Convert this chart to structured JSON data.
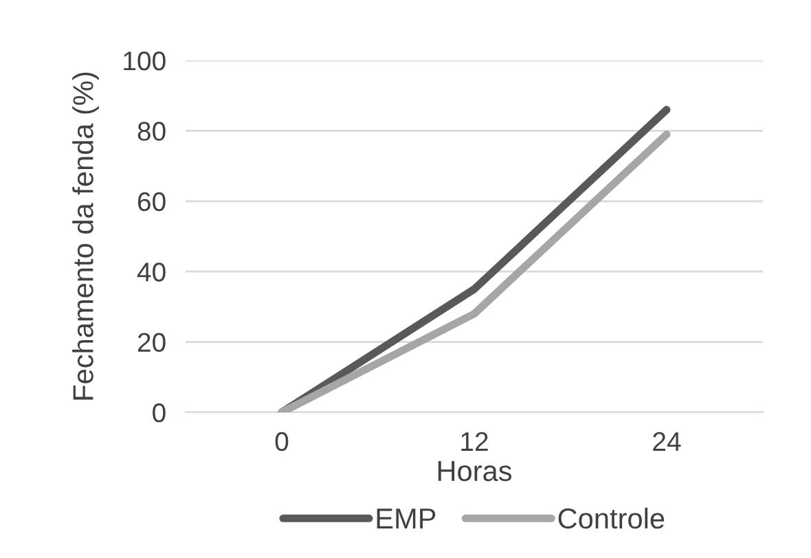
{
  "chart_data": {
    "type": "line",
    "categories": [
      "0",
      "12",
      "24"
    ],
    "xlabel": "Horas",
    "ylabel": "Fechamento da fenda (%)",
    "series": [
      {
        "name": "EMP",
        "color": "#595959",
        "values": [
          0,
          35,
          86
        ]
      },
      {
        "name": "Controle",
        "color": "#a6a6a6",
        "values": [
          0,
          28,
          79
        ]
      }
    ],
    "ylim": [
      0,
      100
    ],
    "yticks": [
      0,
      20,
      40,
      60,
      80,
      100
    ],
    "grid": "y",
    "legend": "bottom",
    "marker": "none",
    "line_style": "solid"
  }
}
